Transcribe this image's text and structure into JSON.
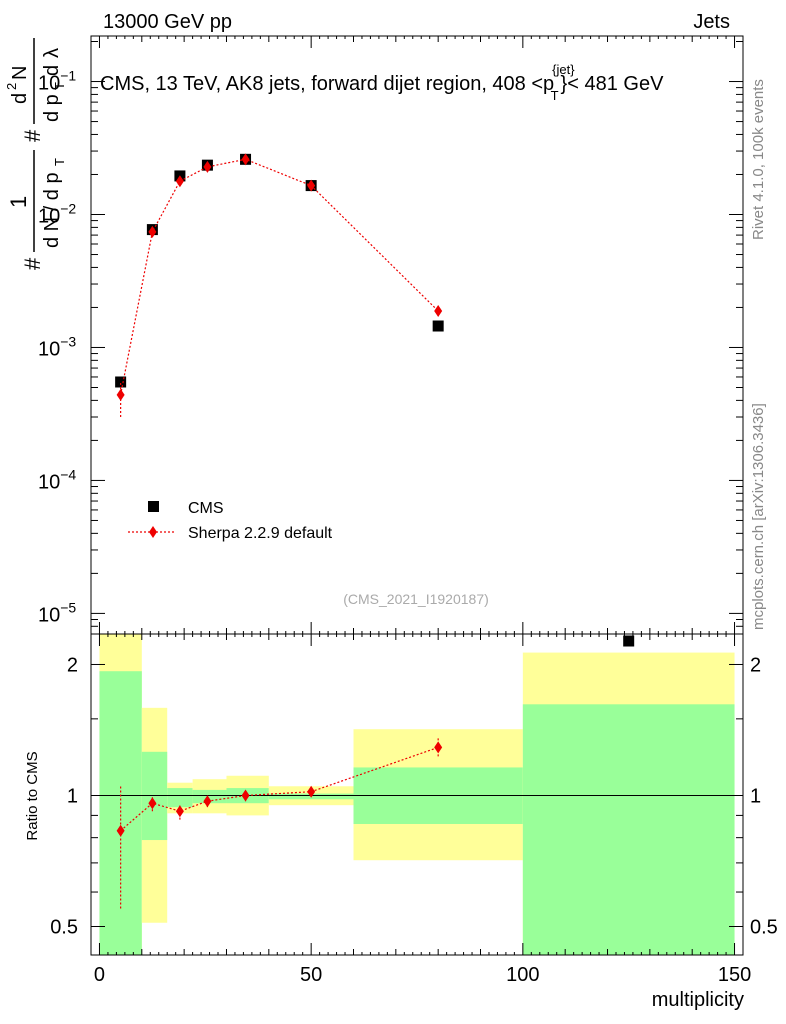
{
  "header": {
    "left": "13000 GeV pp",
    "right": "Jets"
  },
  "title": {
    "main": "CMS, 13 TeV, AK8 jets, forward dijet region, 408 <p",
    "sup": "{jet}",
    "sub": "T",
    "tail": "}< 481 GeV"
  },
  "side_labels": {
    "rivet": "Rivet 4.1.0,  100k events",
    "mcplots": "mcplots.cern.ch [arXiv:1306.3436]"
  },
  "watermark": "(CMS_2021_I1920187)",
  "colors": {
    "data": "#000000",
    "mc": "#ee0000",
    "band_inner": "#99ff99",
    "band_outer": "#ffff99"
  },
  "chart_data": [
    {
      "type": "scatter",
      "panel": "main",
      "ylabel": "1/dN/dpT # d²N/dpT dλ",
      "yscale": "log",
      "xlim": [
        -2,
        152
      ],
      "ylim": [
        7e-06,
        0.22
      ],
      "yticks": [
        {
          "value": 0.1,
          "base": "10",
          "exp": "−1"
        },
        {
          "value": 0.01,
          "base": "10",
          "exp": "−2"
        },
        {
          "value": 0.001,
          "base": "10",
          "exp": "−3"
        },
        {
          "value": 0.0001,
          "base": "10",
          "exp": "−4"
        },
        {
          "value": 1e-05,
          "base": "10",
          "exp": "−5"
        }
      ],
      "legend": {
        "placement": "lower-left",
        "entries": [
          "CMS",
          "Sherpa 2.2.9 default"
        ]
      },
      "series": [
        {
          "name": "CMS",
          "marker": "square",
          "points": [
            {
              "x": 5,
              "y": 0.00055
            },
            {
              "x": 12.5,
              "y": 0.0077
            },
            {
              "x": 19,
              "y": 0.0195
            },
            {
              "x": 25.5,
              "y": 0.0235
            },
            {
              "x": 34.5,
              "y": 0.026
            },
            {
              "x": 50,
              "y": 0.0165
            },
            {
              "x": 80,
              "y": 0.00145
            },
            {
              "x": 125,
              "y": 6.2e-06
            }
          ]
        },
        {
          "name": "Sherpa 2.2.9 default",
          "marker": "diamond",
          "line": "dotted",
          "points": [
            {
              "x": 5,
              "y": 0.00044,
              "ylo": 0.0003,
              "yhi": 0.00055
            },
            {
              "x": 12.5,
              "y": 0.0074,
              "ylo": 0.0071,
              "yhi": 0.0077
            },
            {
              "x": 19,
              "y": 0.0178,
              "ylo": 0.0172,
              "yhi": 0.0184
            },
            {
              "x": 25.5,
              "y": 0.0228,
              "ylo": 0.0221,
              "yhi": 0.0235
            },
            {
              "x": 34.5,
              "y": 0.026,
              "ylo": 0.0254,
              "yhi": 0.0266
            },
            {
              "x": 50,
              "y": 0.0165,
              "ylo": 0.0161,
              "yhi": 0.0169
            },
            {
              "x": 80,
              "y": 0.00188,
              "ylo": 0.00178,
              "yhi": 0.00198
            }
          ]
        }
      ]
    },
    {
      "type": "scatter",
      "panel": "ratio",
      "xlabel": "multiplicity",
      "ylabel": "Ratio to CMS",
      "yscale": "log",
      "xlim": [
        -2,
        152
      ],
      "ylim": [
        0.43,
        2.35
      ],
      "xticks": [
        0,
        50,
        100,
        150
      ],
      "yticks": [
        {
          "value": 0.5,
          "label": "0.5"
        },
        {
          "value": 1,
          "label": "1"
        },
        {
          "value": 2,
          "label": "2"
        }
      ],
      "bands": [
        {
          "x0": 0,
          "x1": 10,
          "inner": [
            0.35,
            1.93
          ],
          "outer": [
            0.35,
            2.35
          ]
        },
        {
          "x0": 10,
          "x1": 16,
          "inner": [
            0.79,
            1.26
          ],
          "outer": [
            0.51,
            1.59
          ]
        },
        {
          "x0": 16,
          "x1": 22,
          "inner": [
            0.94,
            1.04
          ],
          "outer": [
            0.91,
            1.07
          ]
        },
        {
          "x0": 22,
          "x1": 30,
          "inner": [
            0.96,
            1.03
          ],
          "outer": [
            0.91,
            1.09
          ]
        },
        {
          "x0": 30,
          "x1": 40,
          "inner": [
            0.96,
            1.04
          ],
          "outer": [
            0.9,
            1.11
          ]
        },
        {
          "x0": 40,
          "x1": 60,
          "inner": [
            0.98,
            1.01
          ],
          "outer": [
            0.95,
            1.05
          ]
        },
        {
          "x0": 60,
          "x1": 100,
          "inner": [
            0.86,
            1.16
          ],
          "outer": [
            0.71,
            1.42
          ]
        },
        {
          "x0": 100,
          "x1": 150,
          "inner": [
            0.41,
            1.62
          ],
          "outer": [
            0.35,
            2.13
          ]
        }
      ],
      "series": [
        {
          "name": "Sherpa 2.2.9 default",
          "marker": "diamond",
          "line": "dotted",
          "points": [
            {
              "x": 5,
              "y": 0.83,
              "ylo": 0.55,
              "yhi": 1.05
            },
            {
              "x": 12.5,
              "y": 0.96,
              "ylo": 0.92,
              "yhi": 1.0
            },
            {
              "x": 19,
              "y": 0.92,
              "ylo": 0.88,
              "yhi": 0.95
            },
            {
              "x": 25.5,
              "y": 0.97,
              "ylo": 0.94,
              "yhi": 1.0
            },
            {
              "x": 34.5,
              "y": 1.0,
              "ylo": 0.97,
              "yhi": 1.03
            },
            {
              "x": 50,
              "y": 1.02,
              "ylo": 1.0,
              "yhi": 1.04
            },
            {
              "x": 80,
              "y": 1.29,
              "ylo": 1.23,
              "yhi": 1.36
            }
          ]
        }
      ]
    }
  ]
}
